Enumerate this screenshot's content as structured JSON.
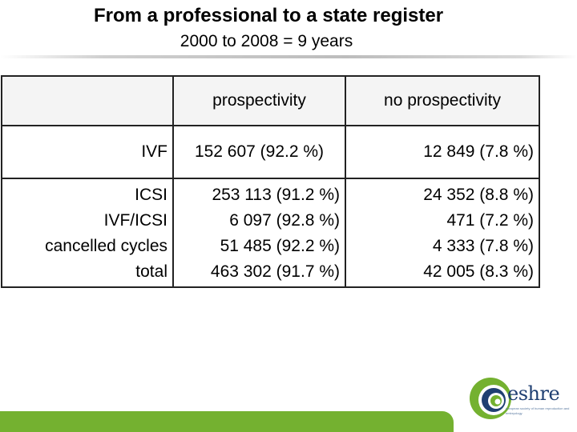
{
  "header": {
    "title": "From a professional to a state register",
    "subtitle": "2000 to 2008 = 9 years"
  },
  "table": {
    "columns": [
      "",
      "prospectivity",
      "no prospectivity"
    ],
    "row_ivf": {
      "label": "IVF",
      "prospectivity": "152 607 (92.2 %)",
      "no_prospectivity": "12 849 (7.8 %)"
    },
    "rows": [
      {
        "label": "ICSI",
        "prospectivity": "253 113 (91.2 %)",
        "no_prospectivity": "24 352 (8.8 %)"
      },
      {
        "label": "IVF/ICSI",
        "prospectivity": "6 097 (92.8 %)",
        "no_prospectivity": "471 (7.2 %)"
      },
      {
        "label": "cancelled cycles",
        "prospectivity": "51 485 (92.2 %)",
        "no_prospectivity": "4 333 (7.8 %)"
      },
      {
        "label": "total",
        "prospectivity": "463 302 (91.7 %)",
        "no_prospectivity": "42 005 (8.3 %)"
      }
    ]
  },
  "logo": {
    "wordmark": "eshre",
    "tagline": "european society of human reproduction and embryology",
    "colors": {
      "green": "#74b130",
      "navy": "#1f3f72"
    }
  }
}
